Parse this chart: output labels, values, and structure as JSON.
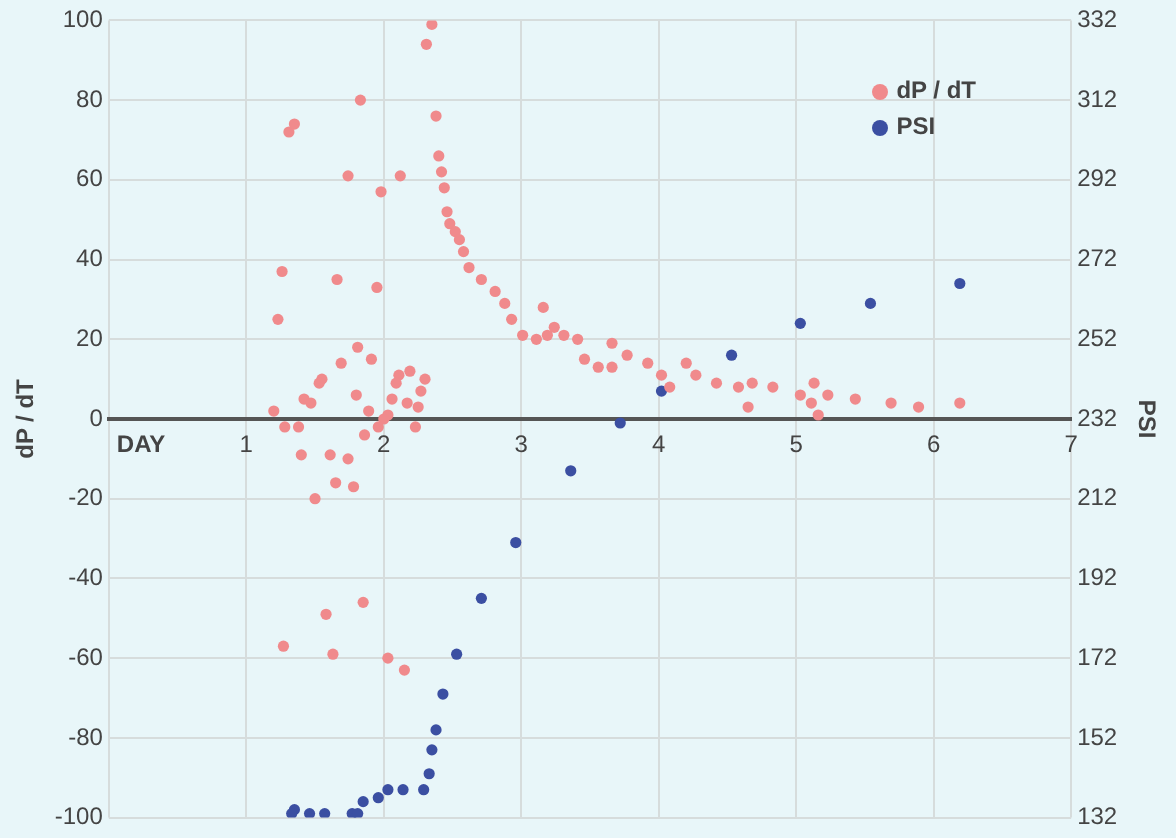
{
  "chart_data": {
    "type": "scatter",
    "xlabel": "DAY",
    "ylabel": "dP / dT",
    "y2label": "PSI",
    "xlim": [
      0,
      7
    ],
    "xticks": [
      {
        "value": 0,
        "label": null
      },
      1,
      2,
      3,
      4,
      5,
      6,
      7
    ],
    "ylim": [
      -100,
      100
    ],
    "yticks": [
      -100,
      -80,
      -60,
      -40,
      -20,
      0,
      20,
      40,
      60,
      80,
      100
    ],
    "y2lim": [
      132,
      332
    ],
    "y2ticks": [
      132,
      152,
      172,
      192,
      212,
      232,
      252,
      272,
      292,
      312,
      332
    ],
    "grid": true,
    "legend": "top right",
    "marker": "circle",
    "series": [
      {
        "name": "dP / dT",
        "color": "#f08a8c",
        "x": [
          2.35,
          2.31,
          1.83,
          1.31,
          1.35,
          2.38,
          1.74,
          2.12,
          1.98,
          2.4,
          2.42,
          2.44,
          2.46,
          2.48,
          2.52,
          2.55,
          2.58,
          2.62,
          2.71,
          2.81,
          2.88,
          2.93,
          3.01,
          3.11,
          3.19,
          3.16,
          3.24,
          3.31,
          3.41,
          3.46,
          3.56,
          3.66,
          3.66,
          3.77,
          3.92,
          4.02,
          4.08,
          4.2,
          4.27,
          4.42,
          4.58,
          4.65,
          4.68,
          4.83,
          5.03,
          5.11,
          5.16,
          5.13,
          5.23,
          5.43,
          5.69,
          5.89,
          6.19,
          1.81,
          1.91,
          1.69,
          1.55,
          1.53,
          1.42,
          1.47,
          1.2,
          1.8,
          1.89,
          2.19,
          2.11,
          2.09,
          2.3,
          2.27,
          2.06,
          2.17,
          2.25,
          2.03,
          2.0,
          1.96,
          1.28,
          1.38,
          2.23,
          1.86,
          1.4,
          1.61,
          1.74,
          1.65,
          1.78,
          1.5,
          1.85,
          1.58,
          1.27,
          1.63,
          2.03,
          2.15,
          1.26,
          1.23,
          1.66,
          1.95
        ],
        "values": [
          99,
          94,
          80,
          72,
          74,
          76,
          61,
          61,
          57,
          66,
          62,
          58,
          52,
          49,
          47,
          45,
          42,
          38,
          35,
          32,
          29,
          25,
          21,
          20,
          21,
          28,
          23,
          21,
          20,
          15,
          13,
          13,
          19,
          16,
          14,
          11,
          8,
          14,
          11,
          9,
          8,
          3,
          9,
          8,
          6,
          4,
          1,
          9,
          6,
          5,
          4,
          3,
          4,
          18,
          15,
          14,
          10,
          9,
          5,
          4,
          2,
          6,
          2,
          12,
          11,
          9,
          10,
          7,
          5,
          4,
          3,
          1,
          0,
          -2,
          -2,
          -2,
          -2,
          -4,
          -9,
          -9,
          -10,
          -16,
          -17,
          -20,
          -46,
          -49,
          -57,
          -59,
          -60,
          -63,
          37,
          25,
          35,
          33
        ]
      },
      {
        "name": "PSI",
        "color": "#3b4fa2",
        "axis": "y2",
        "x": [
          1.35,
          1.33,
          1.46,
          1.57,
          1.77,
          1.81,
          1.85,
          1.96,
          2.03,
          2.14,
          2.29,
          2.33,
          2.35,
          2.38,
          2.43,
          2.53,
          2.71,
          2.96,
          3.36,
          3.72,
          4.02,
          4.53,
          5.03,
          5.54,
          6.19
        ],
        "values": [
          134,
          133,
          133,
          133,
          133,
          133,
          136,
          137,
          139,
          139,
          139,
          143,
          149,
          154,
          163,
          173,
          187,
          201,
          219,
          231,
          239,
          248,
          256,
          261,
          266
        ]
      }
    ]
  }
}
